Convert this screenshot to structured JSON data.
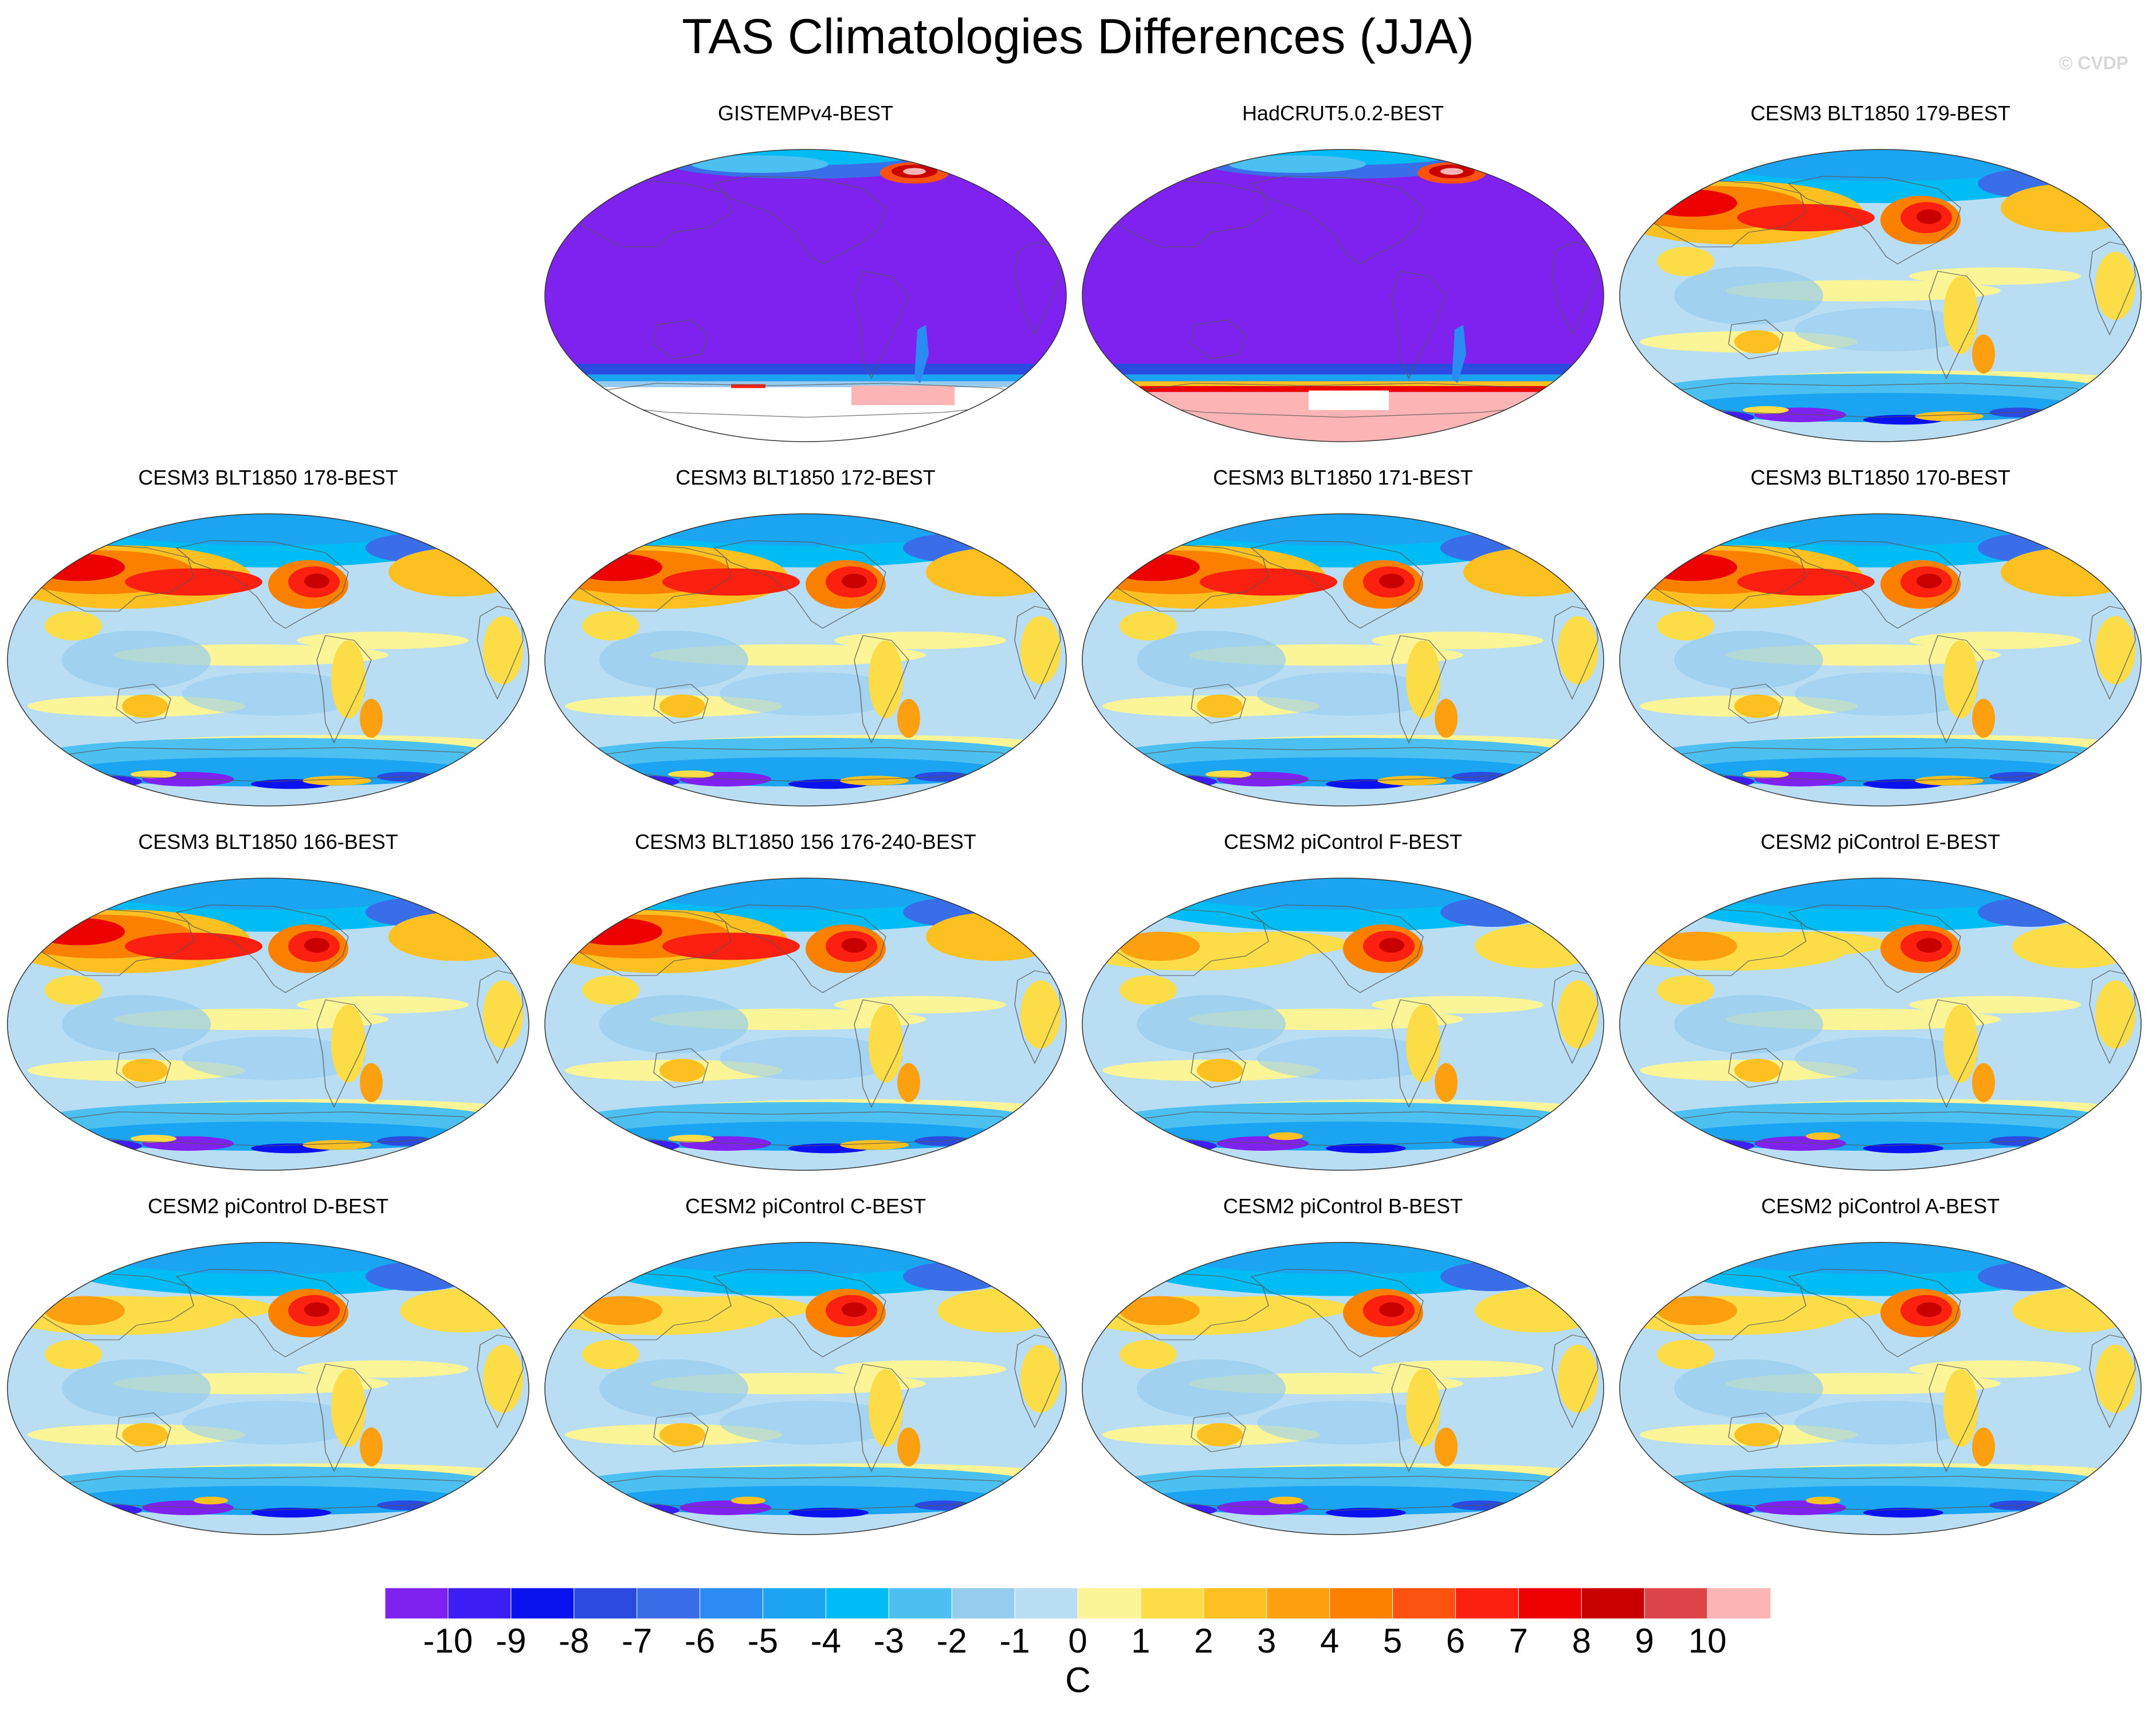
{
  "title": "TAS Climatologies Differences (JJA)",
  "watermark": "© CVDP",
  "panels": [
    {
      "title": "GISTEMPv4-BEST",
      "pattern": "obs_gistemp"
    },
    {
      "title": "HadCRUT5.0.2-BEST",
      "pattern": "obs_hadcrut"
    },
    {
      "title": "CESM3 BLT1850 179-BEST",
      "pattern": "cesm3"
    },
    {
      "title": "CESM3 BLT1850 178-BEST",
      "pattern": "cesm3"
    },
    {
      "title": "CESM3 BLT1850 172-BEST",
      "pattern": "cesm3"
    },
    {
      "title": "CESM3 BLT1850 171-BEST",
      "pattern": "cesm3"
    },
    {
      "title": "CESM3 BLT1850 170-BEST",
      "pattern": "cesm3"
    },
    {
      "title": "CESM3 BLT1850 166-BEST",
      "pattern": "cesm3"
    },
    {
      "title": "CESM3 BLT1850 156 176-240-BEST",
      "pattern": "cesm3"
    },
    {
      "title": "CESM2 piControl F-BEST",
      "pattern": "cesm2"
    },
    {
      "title": "CESM2 piControl E-BEST",
      "pattern": "cesm2"
    },
    {
      "title": "CESM2 piControl D-BEST",
      "pattern": "cesm2"
    },
    {
      "title": "CESM2 piControl C-BEST",
      "pattern": "cesm2"
    },
    {
      "title": "CESM2 piControl B-BEST",
      "pattern": "cesm2"
    },
    {
      "title": "CESM2 piControl A-BEST",
      "pattern": "cesm2"
    }
  ],
  "colorbar": {
    "unit": "C",
    "labels": [
      "-10",
      "-9",
      "-8",
      "-7",
      "-6",
      "-5",
      "-4",
      "-3",
      "-2",
      "-1",
      "0",
      "1",
      "2",
      "3",
      "4",
      "5",
      "6",
      "7",
      "8",
      "9",
      "10"
    ],
    "colors": [
      "#7f22f0",
      "#3d1ef5",
      "#0a12f0",
      "#2a4ae0",
      "#3a6ee8",
      "#2a8cf2",
      "#1aa4f2",
      "#00bcf4",
      "#4cc0f0",
      "#96cdee",
      "#b9def4",
      "#fcf598",
      "#fcdd48",
      "#fcc020",
      "#fca010",
      "#fc8000",
      "#fc5210",
      "#fc2010",
      "#ec0000",
      "#c80000",
      "#dc4448",
      "#fcb4b4"
    ]
  }
}
